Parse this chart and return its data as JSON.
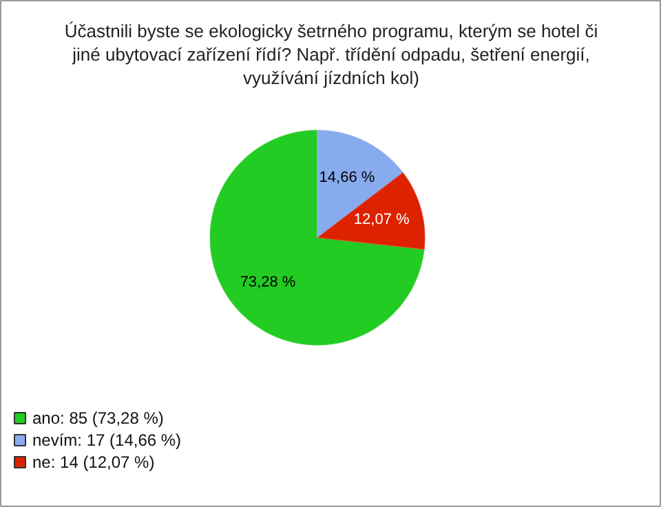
{
  "chart_data": {
    "type": "pie",
    "title": "Účastnili byste se ekologicky šetrného programu, kterým se hotel či jiné ubytovací zařízení řídí? Např. třídění odpadu, šetření energií, využívání jízdních kol)",
    "categories": [
      "ano: 85 (73,28 %)",
      "nevím: 17 (14,66 %)",
      "ne: 14 (12,07 %)"
    ],
    "values": [
      73.28,
      14.66,
      12.07
    ],
    "value_labels": [
      "73,28 %",
      "14,66 %",
      "12,07 %"
    ],
    "colors": [
      "#22cc22",
      "#88aaee",
      "#dd2200"
    ],
    "legend": "bottom left"
  }
}
